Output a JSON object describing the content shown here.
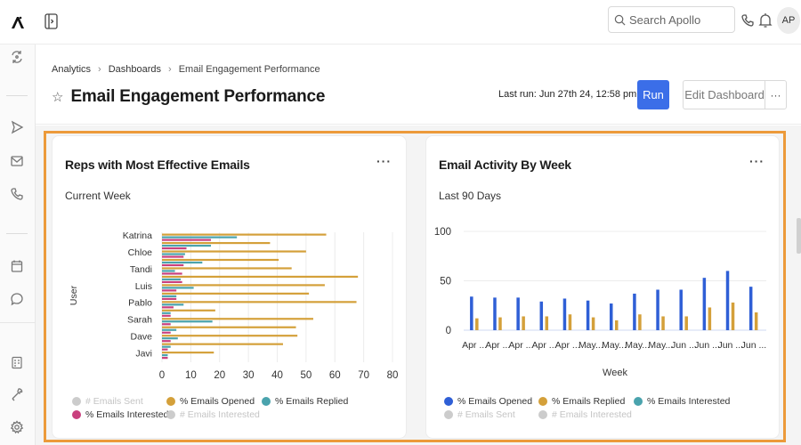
{
  "topbar": {
    "search_placeholder": "Search Apollo",
    "avatar_initials": "AP"
  },
  "breadcrumb": {
    "items": [
      "Analytics",
      "Dashboards",
      "Email Engagement Performance"
    ],
    "separator": "›"
  },
  "page": {
    "title": "Email Engagement Performance",
    "last_run": "Last run: Jun 27th 24, 12:58 pm",
    "run_label": "Run",
    "edit_label": "Edit Dashboard",
    "more_label": "···"
  },
  "colors": {
    "accent": "#3b6ee8",
    "highlight_border": "#ec9a3a",
    "opened_orange": "#d4a03a",
    "replied_teal": "#4aa3ad",
    "interested_pink": "#c9407e",
    "opened_blue": "#2f5fd6",
    "disabled_gray": "#cccccc"
  },
  "cards": [
    {
      "title": "Reps with Most Effective Emails",
      "subtitle": "Current Week",
      "more_label": "···"
    },
    {
      "title": "Email Activity By Week",
      "subtitle": "Last 90 Days",
      "more_label": "···"
    }
  ],
  "chart_data": [
    {
      "type": "bar",
      "orientation": "horizontal",
      "title": "Reps with Most Effective Emails",
      "subtitle": "Current Week",
      "ylabel": "User",
      "xlabel": "",
      "xlim": [
        0,
        80
      ],
      "xticks": [
        0,
        10,
        20,
        30,
        40,
        50,
        60,
        70,
        80
      ],
      "grid": true,
      "category_labels_shown": [
        "Katrina",
        "Chloe",
        "Tandi",
        "Luis",
        "Pablo",
        "Sarah",
        "Dave",
        "Javi"
      ],
      "categories": [
        "Katrina",
        "",
        "Chloe",
        "",
        "Tandi",
        "",
        "Luis",
        "",
        "Pablo",
        "",
        "Sarah",
        "",
        "Dave",
        "",
        "Javi"
      ],
      "series": [
        {
          "name": "% Emails Opened",
          "color": "#d4a03a",
          "values": [
            57,
            37.5,
            50,
            40.5,
            45,
            68,
            56.5,
            51,
            67.5,
            18.5,
            52.5,
            46.5,
            47,
            42,
            18
          ]
        },
        {
          "name": "% Emails Replied",
          "color": "#4aa3ad",
          "values": [
            26,
            17,
            8,
            14,
            4.5,
            6.5,
            11,
            5,
            7.5,
            3,
            17.5,
            5,
            5.5,
            3,
            2
          ]
        },
        {
          "name": "% Emails Interested",
          "color": "#c9407e",
          "values": [
            17,
            8.5,
            7.5,
            7.5,
            7,
            7,
            5,
            5,
            4,
            3,
            3,
            3,
            3,
            2,
            2
          ]
        }
      ],
      "legend": [
        {
          "label": "# Emails Sent",
          "color": "#cccccc",
          "disabled": true
        },
        {
          "label": "% Emails Opened",
          "color": "#d4a03a",
          "disabled": false
        },
        {
          "label": "% Emails Replied",
          "color": "#4aa3ad",
          "disabled": false
        },
        {
          "label": "% Emails Interested",
          "color": "#c9407e",
          "disabled": false
        },
        {
          "label": "# Emails Interested",
          "color": "#cccccc",
          "disabled": true
        }
      ],
      "legend_position": "bottom-left"
    },
    {
      "type": "bar",
      "orientation": "vertical",
      "title": "Email Activity By Week",
      "subtitle": "Last 90 Days",
      "xlabel": "Week",
      "ylabel": "",
      "ylim": [
        0,
        100
      ],
      "yticks": [
        0,
        50,
        100
      ],
      "grid": true,
      "categories": [
        "Apr ...",
        "Apr ...",
        "Apr ...",
        "Apr ...",
        "Apr ...",
        "May...",
        "May...",
        "May...",
        "May...",
        "Jun ...",
        "Jun ...",
        "Jun ...",
        "Jun ..."
      ],
      "series": [
        {
          "name": "% Emails Opened",
          "color": "#2f5fd6",
          "values": [
            34,
            33,
            33,
            29,
            32,
            30,
            27,
            37,
            41,
            41,
            53,
            60,
            44
          ]
        },
        {
          "name": "% Emails Replied",
          "color": "#d4a03a",
          "values": [
            12,
            13,
            14,
            14,
            16,
            13,
            10,
            16,
            14,
            14,
            23,
            28,
            18
          ]
        }
      ],
      "legend": [
        {
          "label": "% Emails Opened",
          "color": "#2f5fd6",
          "disabled": false
        },
        {
          "label": "% Emails Replied",
          "color": "#d4a03a",
          "disabled": false
        },
        {
          "label": "% Emails Interested",
          "color": "#4aa3ad",
          "disabled": false
        },
        {
          "label": "# Emails Sent",
          "color": "#cccccc",
          "disabled": true
        },
        {
          "label": "# Emails Interested",
          "color": "#cccccc",
          "disabled": true
        }
      ],
      "legend_position": "bottom-left"
    }
  ]
}
